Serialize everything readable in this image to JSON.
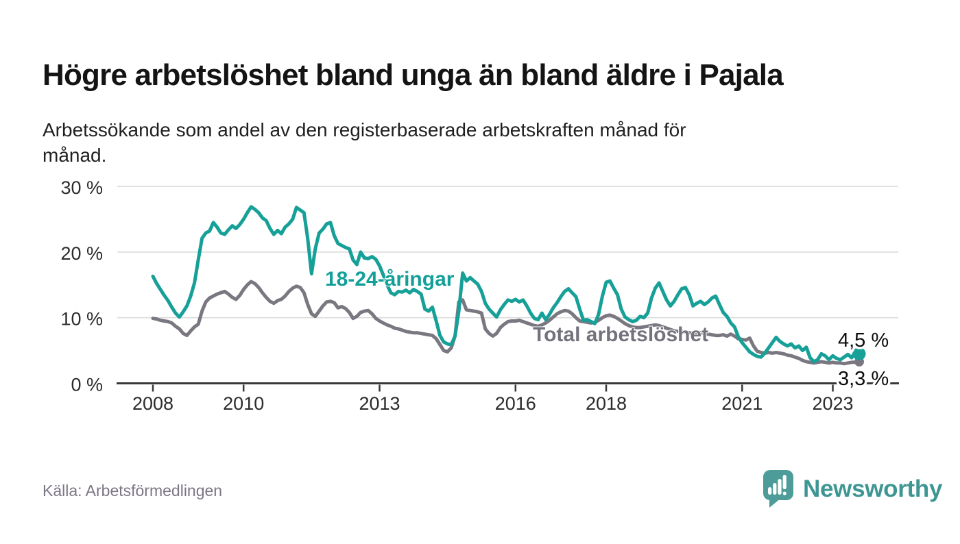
{
  "title": "Högre arbetslöshet bland unga än bland äldre i Pajala",
  "subtitle": "Arbetssökande som andel av den registerbaserade arbetskraften månad för månad.",
  "source": "Källa: Arbetsförmedlingen",
  "branding": {
    "name": "Newsworthy",
    "text_color": "#3E9693",
    "bubble_color": "#4E9C99"
  },
  "colors": {
    "young_series": "#16A098",
    "total_series": "#7A7780",
    "young_label": "#12A098",
    "total_label": "#75727D",
    "grid": "#DBDBDB",
    "axis": "#383838",
    "tick_text": "#2C2C2C",
    "end_label_text": "#0D0D0D"
  },
  "chart_data": {
    "type": "line",
    "frequency": "monthly",
    "x_start": "2008-01",
    "x_end": "2023-08",
    "ylim": [
      0,
      30
    ],
    "grid": "horizontal",
    "legend_position": "inline-labels",
    "y_ticks": [
      {
        "v": 0,
        "label": "0 %"
      },
      {
        "v": 10,
        "label": "10 %"
      },
      {
        "v": 20,
        "label": "20 %"
      },
      {
        "v": 30,
        "label": "30 %"
      }
    ],
    "x_ticks": [
      {
        "year": 2008,
        "label": "2008"
      },
      {
        "year": 2010,
        "label": "2010"
      },
      {
        "year": 2013,
        "label": "2013"
      },
      {
        "year": 2016,
        "label": "2016"
      },
      {
        "year": 2018,
        "label": "2018"
      },
      {
        "year": 2021,
        "label": "2021"
      },
      {
        "year": 2023,
        "label": "2023"
      }
    ],
    "series": [
      {
        "name": "Total arbetslöshet",
        "end_label": "3,3 %",
        "end_value": 3.3,
        "values": [
          9.9,
          9.8,
          9.6,
          9.5,
          9.4,
          9.2,
          8.7,
          8.3,
          7.6,
          7.3,
          8.0,
          8.6,
          9.0,
          11.0,
          12.4,
          13.0,
          13.3,
          13.6,
          13.8,
          14.0,
          13.6,
          13.1,
          12.8,
          13.4,
          14.3,
          15.0,
          15.5,
          15.2,
          14.6,
          13.8,
          13.1,
          12.5,
          12.2,
          12.6,
          12.8,
          13.3,
          14.0,
          14.5,
          14.8,
          14.6,
          13.8,
          12.0,
          10.6,
          10.2,
          11.0,
          11.8,
          12.4,
          12.5,
          12.3,
          11.5,
          11.7,
          11.4,
          10.8,
          9.9,
          10.2,
          10.8,
          11.0,
          11.1,
          10.6,
          9.9,
          9.5,
          9.2,
          8.9,
          8.7,
          8.4,
          8.3,
          8.1,
          7.9,
          7.8,
          7.7,
          7.7,
          7.6,
          7.5,
          7.4,
          7.3,
          6.8,
          5.9,
          5.0,
          4.8,
          5.4,
          7.2,
          12.4,
          12.7,
          11.2,
          11.1,
          11.0,
          10.9,
          10.7,
          8.3,
          7.6,
          7.2,
          7.6,
          8.5,
          9.0,
          9.4,
          9.5,
          9.5,
          9.6,
          9.4,
          9.2,
          9.0,
          8.8,
          8.7,
          8.9,
          9.2,
          9.6,
          10.1,
          10.6,
          10.9,
          11.1,
          11.0,
          10.6,
          10.0,
          9.5,
          9.4,
          9.3,
          9.2,
          9.3,
          9.6,
          10.0,
          10.3,
          10.4,
          10.2,
          9.9,
          9.5,
          9.1,
          8.8,
          8.6,
          8.5,
          8.5,
          8.6,
          8.7,
          8.8,
          8.9,
          8.8,
          8.6,
          8.4,
          8.2,
          8.0,
          7.9,
          7.9,
          7.8,
          7.7,
          7.6,
          7.8,
          7.7,
          7.6,
          7.5,
          7.4,
          7.3,
          7.3,
          7.4,
          7.2,
          7.5,
          7.2,
          6.8,
          6.7,
          6.6,
          6.9,
          5.7,
          4.9,
          4.7,
          4.6,
          4.7,
          4.6,
          4.7,
          4.6,
          4.5,
          4.3,
          4.2,
          4.0,
          3.8,
          3.5,
          3.3,
          3.2,
          3.1,
          3.2,
          3.3,
          3.2,
          3.1,
          3.2,
          3.1,
          3.1,
          3.0,
          3.1,
          3.2,
          3.2,
          3.3
        ]
      },
      {
        "name": "18-24-åringar",
        "end_label": "4,5 %",
        "end_value": 4.5,
        "values": [
          16.3,
          15.2,
          14.3,
          13.4,
          12.6,
          11.6,
          10.7,
          10.1,
          10.9,
          11.8,
          13.3,
          15.3,
          18.8,
          22.1,
          22.9,
          23.2,
          24.5,
          23.8,
          22.9,
          22.7,
          23.4,
          24.0,
          23.6,
          24.2,
          25.0,
          26.0,
          26.9,
          26.5,
          26.0,
          25.2,
          24.8,
          23.6,
          22.7,
          23.3,
          22.8,
          23.8,
          24.3,
          25.0,
          26.8,
          26.4,
          26.0,
          22.0,
          16.7,
          20.5,
          22.9,
          23.5,
          24.3,
          24.5,
          22.5,
          21.3,
          21.0,
          20.7,
          20.5,
          18.8,
          18.1,
          20.0,
          19.1,
          19.0,
          19.3,
          18.9,
          17.9,
          16.5,
          15.0,
          13.8,
          13.5,
          14.0,
          13.9,
          14.2,
          13.8,
          14.3,
          14.0,
          13.6,
          11.3,
          11.0,
          11.6,
          9.5,
          7.3,
          6.3,
          6.0,
          5.9,
          7.2,
          11.0,
          16.8,
          15.6,
          16.1,
          15.6,
          15.1,
          14.0,
          12.2,
          11.3,
          10.7,
          10.1,
          11.2,
          12.0,
          12.7,
          12.5,
          12.8,
          12.4,
          12.7,
          11.8,
          10.7,
          9.9,
          9.7,
          10.7,
          9.7,
          10.5,
          11.5,
          12.3,
          13.2,
          14.0,
          14.4,
          13.8,
          13.2,
          11.3,
          9.6,
          9.7,
          9.4,
          9.1,
          10.5,
          13.3,
          15.4,
          15.6,
          14.5,
          13.5,
          11.3,
          10.1,
          9.7,
          9.4,
          9.6,
          10.2,
          10.0,
          10.7,
          13.0,
          14.5,
          15.3,
          14.0,
          12.7,
          11.8,
          12.5,
          13.5,
          14.4,
          14.6,
          13.5,
          11.8,
          12.2,
          12.5,
          12.0,
          12.4,
          13.0,
          13.3,
          12.0,
          10.8,
          10.2,
          9.2,
          8.6,
          7.1,
          6.2,
          5.5,
          4.8,
          4.4,
          4.1,
          4.0,
          4.6,
          5.4,
          6.2,
          7.0,
          6.4,
          6.0,
          5.7,
          6.0,
          5.4,
          5.7,
          5.0,
          5.5,
          3.9,
          3.3,
          3.6,
          4.5,
          4.2,
          3.6,
          4.2,
          3.8,
          3.6,
          4.0,
          4.4,
          3.9,
          4.9,
          4.5
        ]
      }
    ]
  }
}
